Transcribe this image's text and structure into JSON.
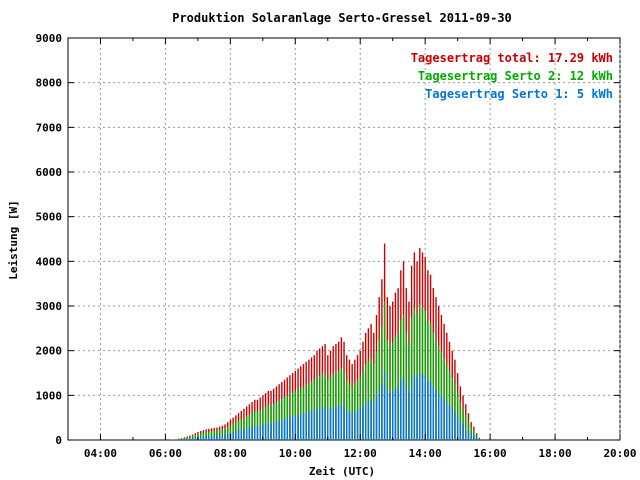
{
  "chart_data": {
    "type": "bar",
    "title": "Produktion Solaranlage Serto-Gressel 2011-09-30",
    "xlabel": "Zeit (UTC)",
    "ylabel": "Leistung [W]",
    "xlim": [
      3.0,
      20.0
    ],
    "ylim": [
      0,
      9000
    ],
    "x_ticks": [
      "04:00",
      "06:00",
      "08:00",
      "10:00",
      "12:00",
      "14:00",
      "16:00",
      "18:00",
      "20:00"
    ],
    "y_ticks": [
      "0",
      "1000",
      "2000",
      "3000",
      "4000",
      "5000",
      "6000",
      "7000",
      "8000",
      "9000"
    ],
    "grid": true,
    "legend_position": "top-right",
    "legend": [
      {
        "label": "Tagesertrag total: 17.29 kWh",
        "color": "#cc0000"
      },
      {
        "label": "Tagesertrag Serto 2: 12 kWh",
        "color": "#00aa00"
      },
      {
        "label": "Tagesertrag Serto 1: 5 kWh",
        "color": "#0077dd"
      }
    ],
    "x_step_hours": 0.0833,
    "x_start_hours": 6.17,
    "series": [
      {
        "name": "total",
        "color": "#cc0000",
        "values": [
          5,
          10,
          15,
          30,
          40,
          60,
          80,
          100,
          120,
          150,
          180,
          200,
          220,
          240,
          250,
          260,
          270,
          280,
          300,
          320,
          350,
          400,
          450,
          500,
          550,
          600,
          650,
          700,
          750,
          800,
          850,
          900,
          900,
          950,
          1000,
          1050,
          1100,
          1100,
          1150,
          1200,
          1250,
          1300,
          1350,
          1400,
          1450,
          1500,
          1550,
          1600,
          1650,
          1700,
          1750,
          1800,
          1850,
          1900,
          2000,
          2050,
          2100,
          2150,
          1900,
          2000,
          2100,
          2150,
          2200,
          2300,
          2200,
          1900,
          1800,
          1700,
          1800,
          1900,
          2000,
          2200,
          2400,
          2500,
          2600,
          2400,
          2800,
          3200,
          3600,
          4400,
          3200,
          3000,
          3100,
          3300,
          3400,
          3800,
          4000,
          3400,
          3100,
          3900,
          4200,
          4000,
          4300,
          4200,
          4100,
          3800,
          3700,
          3400,
          3200,
          3000,
          2800,
          2600,
          2400,
          2200,
          2000,
          1800,
          1500,
          1200,
          1000,
          800,
          600,
          400,
          300,
          150,
          50
        ]
      },
      {
        "name": "Serto 2",
        "color": "#00aa00",
        "values": [
          5,
          8,
          12,
          22,
          30,
          45,
          60,
          75,
          90,
          110,
          130,
          150,
          160,
          170,
          180,
          190,
          200,
          210,
          220,
          230,
          250,
          290,
          320,
          360,
          400,
          430,
          460,
          500,
          530,
          570,
          600,
          640,
          640,
          670,
          700,
          740,
          780,
          780,
          810,
          850,
          880,
          920,
          950,
          990,
          1020,
          1060,
          1090,
          1130,
          1160,
          1200,
          1230,
          1270,
          1300,
          1340,
          1400,
          1440,
          1480,
          1520,
          1340,
          1400,
          1480,
          1520,
          1550,
          1620,
          1550,
          1340,
          1270,
          1200,
          1270,
          1340,
          1400,
          1550,
          1700,
          1760,
          1830,
          1700,
          1970,
          2250,
          2540,
          3100,
          2250,
          2110,
          2180,
          2320,
          2400,
          2680,
          2820,
          2400,
          2180,
          2750,
          2960,
          2820,
          3030,
          2960,
          2890,
          2680,
          2610,
          2400,
          2250,
          2110,
          1970,
          1830,
          1700,
          1550,
          1400,
          1270,
          1060,
          850,
          700,
          560,
          420,
          280,
          210,
          100,
          35
        ]
      },
      {
        "name": "Serto 1",
        "color": "#0077dd",
        "values": [
          2,
          4,
          6,
          10,
          14,
          20,
          28,
          35,
          42,
          52,
          62,
          70,
          78,
          85,
          88,
          92,
          95,
          98,
          105,
          112,
          122,
          140,
          158,
          175,
          192,
          210,
          228,
          245,
          262,
          280,
          298,
          315,
          315,
          332,
          350,
          368,
          385,
          385,
          402,
          420,
          438,
          455,
          472,
          490,
          508,
          525,
          542,
          560,
          578,
          595,
          612,
          630,
          648,
          665,
          700,
          718,
          735,
          752,
          665,
          700,
          735,
          752,
          770,
          805,
          770,
          665,
          630,
          595,
          630,
          665,
          700,
          770,
          840,
          875,
          910,
          840,
          980,
          1120,
          1260,
          1540,
          1120,
          1050,
          1085,
          1155,
          1190,
          1330,
          1400,
          1190,
          1085,
          1365,
          1470,
          1400,
          1505,
          1470,
          1435,
          1330,
          1295,
          1190,
          1120,
          1050,
          980,
          910,
          840,
          770,
          700,
          630,
          525,
          420,
          350,
          280,
          210,
          140,
          105,
          52,
          18
        ]
      }
    ]
  }
}
